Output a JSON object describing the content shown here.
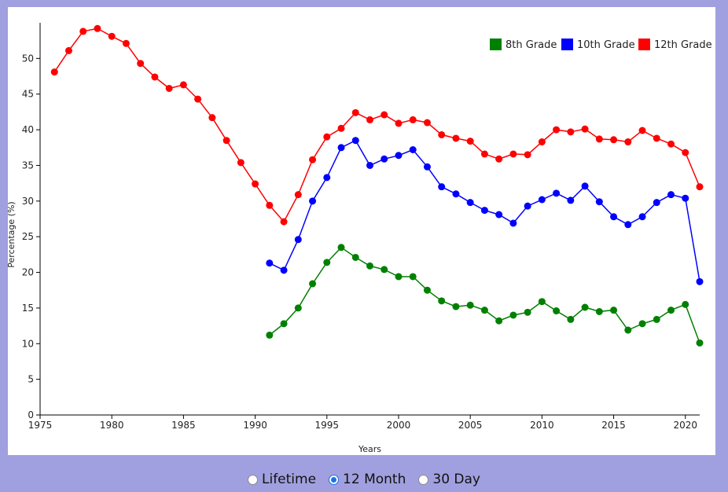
{
  "chart_data": {
    "type": "line",
    "title": "",
    "xlabel": "Years",
    "ylabel": "Percentage (%)",
    "xlim": [
      1975,
      2021
    ],
    "ylim": [
      0,
      55
    ],
    "x_ticks": [
      1975,
      1980,
      1985,
      1990,
      1995,
      2000,
      2005,
      2010,
      2015,
      2020
    ],
    "y_ticks": [
      0,
      5,
      10,
      15,
      20,
      25,
      30,
      35,
      40,
      45,
      50
    ],
    "grid": false,
    "legend_position": "top-right",
    "series": [
      {
        "name": "8th Grade",
        "color": "#008000",
        "x": [
          1991,
          1992,
          1993,
          1994,
          1995,
          1996,
          1997,
          1998,
          1999,
          2000,
          2001,
          2002,
          2003,
          2004,
          2005,
          2006,
          2007,
          2008,
          2009,
          2010,
          2011,
          2012,
          2013,
          2014,
          2015,
          2016,
          2017,
          2018,
          2019,
          2020,
          2021
        ],
        "y": [
          11.2,
          12.8,
          15.0,
          18.4,
          21.4,
          23.5,
          22.1,
          20.9,
          20.4,
          19.4,
          19.4,
          17.5,
          16.0,
          15.2,
          15.4,
          14.7,
          13.2,
          14.0,
          14.4,
          15.9,
          14.6,
          13.4,
          15.1,
          14.5,
          14.7,
          11.9,
          12.8,
          13.4,
          14.7,
          15.5,
          10.1
        ]
      },
      {
        "name": "10th Grade",
        "color": "#0000ff",
        "x": [
          1991,
          1992,
          1993,
          1994,
          1995,
          1996,
          1997,
          1998,
          1999,
          2000,
          2001,
          2002,
          2003,
          2004,
          2005,
          2006,
          2007,
          2008,
          2009,
          2010,
          2011,
          2012,
          2013,
          2014,
          2015,
          2016,
          2017,
          2018,
          2019,
          2020,
          2021
        ],
        "y": [
          21.3,
          20.3,
          24.6,
          30.0,
          33.3,
          37.5,
          38.5,
          35.0,
          35.9,
          36.4,
          37.2,
          34.8,
          32.0,
          31.0,
          29.8,
          28.7,
          28.1,
          26.9,
          29.3,
          30.2,
          31.1,
          30.1,
          32.1,
          29.9,
          27.8,
          26.7,
          27.8,
          29.8,
          30.9,
          30.4,
          18.7
        ]
      },
      {
        "name": "12th Grade",
        "color": "#ff0000",
        "x": [
          1976,
          1977,
          1978,
          1979,
          1980,
          1981,
          1982,
          1983,
          1984,
          1985,
          1986,
          1987,
          1988,
          1989,
          1990,
          1991,
          1992,
          1993,
          1994,
          1995,
          1996,
          1997,
          1998,
          1999,
          2000,
          2001,
          2002,
          2003,
          2004,
          2005,
          2006,
          2007,
          2008,
          2009,
          2010,
          2011,
          2012,
          2013,
          2014,
          2015,
          2016,
          2017,
          2018,
          2019,
          2020,
          2021
        ],
        "y": [
          48.1,
          51.1,
          53.8,
          54.2,
          53.1,
          52.1,
          49.3,
          47.4,
          45.8,
          46.3,
          44.3,
          41.7,
          38.5,
          35.4,
          32.4,
          29.4,
          27.1,
          30.9,
          35.8,
          39.0,
          40.2,
          42.4,
          41.4,
          42.1,
          40.9,
          41.4,
          41.0,
          39.3,
          38.8,
          38.4,
          36.6,
          35.9,
          36.6,
          36.5,
          38.3,
          40.0,
          39.7,
          40.1,
          38.7,
          38.6,
          38.3,
          39.9,
          38.8,
          38.0,
          36.8,
          32.0
        ]
      }
    ]
  },
  "controls": {
    "options": [
      {
        "label": "Lifetime",
        "selected": false
      },
      {
        "label": "12 Month",
        "selected": true
      },
      {
        "label": "30 Day",
        "selected": false
      }
    ]
  }
}
